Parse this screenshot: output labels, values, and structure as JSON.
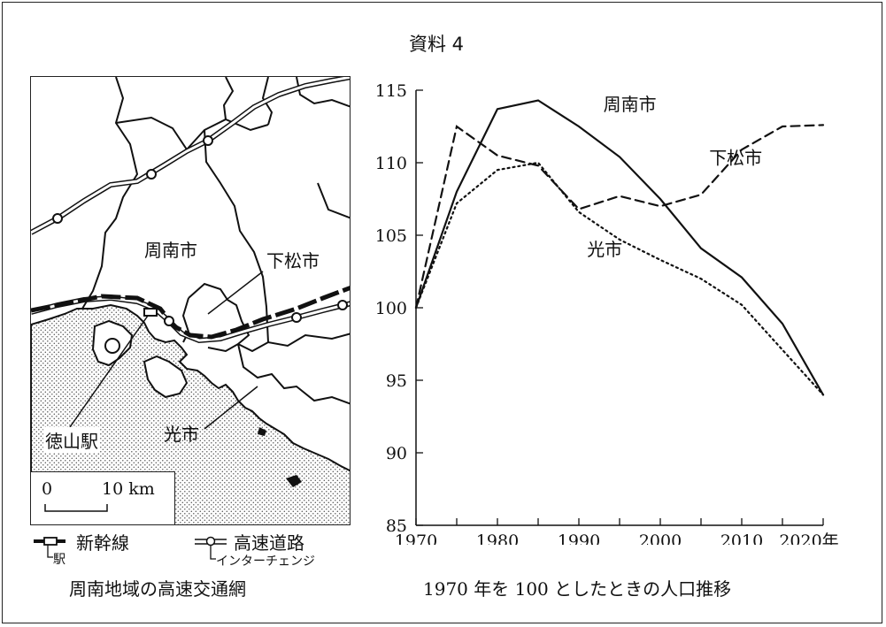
{
  "document": {
    "title": "資料 4"
  },
  "map": {
    "city_labels": {
      "shunan": "周南市",
      "kudamatsu": "下松市",
      "hikari": "光市",
      "tokuyama_station": "徳山駅"
    },
    "scale": {
      "zero": "0",
      "ten": "10 km"
    },
    "legend": {
      "shinkansen": "新幹線",
      "station": "駅",
      "expressway": "高速道路",
      "interchange": "インターチェンジ"
    },
    "caption": "周南地域の高速交通網"
  },
  "chart_data": {
    "type": "line",
    "title": "",
    "caption": "1970 年を 100 としたときの人口推移",
    "x_unit": "年",
    "x": [
      1970,
      1975,
      1980,
      1985,
      1990,
      1995,
      2000,
      2005,
      2010,
      2015,
      2020
    ],
    "x_tick_labels": [
      "1970",
      "1980",
      "1990",
      "2000",
      "2010",
      "2020"
    ],
    "x_ticks": [
      1970,
      1980,
      1990,
      2000,
      2010,
      2020
    ],
    "y_ticks": [
      85,
      90,
      95,
      100,
      105,
      110,
      115
    ],
    "ylim": [
      85,
      115
    ],
    "xlim": [
      1970,
      2020
    ],
    "grid": false,
    "series": [
      {
        "name": "周南市",
        "style": "solid",
        "values": [
          100,
          108,
          113.7,
          114.3,
          112.5,
          110.4,
          107.5,
          104.1,
          102.1,
          98.9,
          94
        ]
      },
      {
        "name": "下松市",
        "style": "dashed",
        "values": [
          100,
          112.5,
          110.5,
          109.8,
          106.8,
          107.7,
          107.0,
          107.8,
          110.9,
          112.5,
          112.6
        ]
      },
      {
        "name": "光市",
        "style": "dotted",
        "values": [
          100,
          107.2,
          109.5,
          110.0,
          106.6,
          104.7,
          103.3,
          102.0,
          100.2,
          97.1,
          94
        ]
      }
    ]
  }
}
